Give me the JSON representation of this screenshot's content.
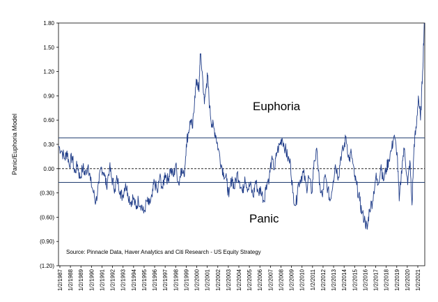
{
  "chart_data": {
    "type": "line",
    "title": "",
    "ylabel": "Panic/Euphoria  Model",
    "xlabel": "",
    "ylim": [
      -1.2,
      1.8
    ],
    "yticks": [
      {
        "value": 1.8,
        "label": "1.80"
      },
      {
        "value": 1.5,
        "label": "1.50"
      },
      {
        "value": 1.2,
        "label": "1.20"
      },
      {
        "value": 0.9,
        "label": "0.90"
      },
      {
        "value": 0.6,
        "label": "0.60"
      },
      {
        "value": 0.3,
        "label": "0.30"
      },
      {
        "value": 0.0,
        "label": "0.00"
      },
      {
        "value": -0.3,
        "label": "(0.30)"
      },
      {
        "value": -0.6,
        "label": "(0.60)"
      },
      {
        "value": -0.9,
        "label": "(0.90)"
      },
      {
        "value": -1.2,
        "label": "(1.20)"
      }
    ],
    "xlim": [
      1987,
      2021.4
    ],
    "xticks": [
      "1/2/1987",
      "1/2/1988",
      "1/2/1989",
      "1/2/1990",
      "1/2/1991",
      "1/2/1992",
      "1/2/1993",
      "1/2/1994",
      "1/2/1995",
      "1/2/1996",
      "1/2/1997",
      "1/2/1998",
      "1/2/1999",
      "1/2/2000",
      "1/2/2001",
      "1/2/2002",
      "1/2/2003",
      "1/2/2004",
      "1/2/2005",
      "1/2/2006",
      "1/2/2007",
      "1/2/2008",
      "1/2/2009",
      "1/2/2010",
      "1/2/2011",
      "1/2/2012",
      "1/2/2013",
      "1/2/2014",
      "1/2/2015",
      "1/2/2016",
      "1/2/2017",
      "1/2/2018",
      "1/2/2019",
      "1/2/2020",
      "1/2/2021"
    ],
    "reference_lines": [
      {
        "name": "Euphoria",
        "value": 0.38
      },
      {
        "name": "Panic",
        "value": -0.17
      }
    ],
    "annotations": {
      "euphoria": "Euphoria",
      "panic": "Panic"
    },
    "source": "Source:  Pinnacle Data, Haver Analytics and Citi Research - US Equity Strategy",
    "series": [
      {
        "color": "#1f3c88",
        "x": [
          1987.0,
          1987.3,
          1987.6,
          1987.8,
          1988.0,
          1988.3,
          1988.5,
          1988.8,
          1989.0,
          1989.3,
          1989.5,
          1989.8,
          1990.0,
          1990.3,
          1990.5,
          1990.8,
          1991.0,
          1991.3,
          1991.5,
          1991.8,
          1992.0,
          1992.3,
          1992.5,
          1992.8,
          1993.0,
          1993.3,
          1993.5,
          1993.8,
          1994.0,
          1994.3,
          1994.5,
          1994.8,
          1995.0,
          1995.3,
          1995.5,
          1995.8,
          1996.0,
          1996.3,
          1996.5,
          1996.8,
          1997.0,
          1997.3,
          1997.5,
          1997.8,
          1998.0,
          1998.3,
          1998.5,
          1998.8,
          1999.0,
          1999.2,
          1999.4,
          1999.6,
          1999.8,
          2000.0,
          2000.2,
          2000.3,
          2000.5,
          2000.7,
          2000.9,
          2001.0,
          2001.2,
          2001.4,
          2001.6,
          2001.8,
          2002.0,
          2002.3,
          2002.5,
          2002.8,
          2003.0,
          2003.3,
          2003.5,
          2003.8,
          2004.0,
          2004.3,
          2004.5,
          2004.8,
          2005.0,
          2005.3,
          2005.5,
          2005.8,
          2006.0,
          2006.3,
          2006.5,
          2006.8,
          2007.0,
          2007.3,
          2007.5,
          2007.8,
          2008.0,
          2008.3,
          2008.5,
          2008.8,
          2009.0,
          2009.3,
          2009.5,
          2009.8,
          2010.0,
          2010.3,
          2010.5,
          2010.8,
          2011.0,
          2011.3,
          2011.5,
          2011.8,
          2012.0,
          2012.3,
          2012.5,
          2012.8,
          2013.0,
          2013.3,
          2013.5,
          2013.8,
          2014.0,
          2014.3,
          2014.5,
          2014.8,
          2015.0,
          2015.3,
          2015.5,
          2015.8,
          2016.0,
          2016.2,
          2016.5,
          2016.8,
          2017.0,
          2017.3,
          2017.5,
          2017.8,
          2018.0,
          2018.3,
          2018.5,
          2018.8,
          2019.0,
          2019.3,
          2019.5,
          2019.8,
          2020.0,
          2020.2,
          2020.4,
          2020.6,
          2020.8,
          2021.0,
          2021.2,
          2021.35
        ],
        "values": [
          0.28,
          0.22,
          0.12,
          0.22,
          0.05,
          0.15,
          -0.05,
          0.05,
          -0.12,
          0.02,
          -0.08,
          0.05,
          -0.15,
          -0.3,
          -0.42,
          -0.18,
          0.02,
          -0.05,
          -0.22,
          0.02,
          -0.12,
          -0.25,
          -0.12,
          -0.28,
          -0.35,
          -0.18,
          -0.3,
          -0.42,
          -0.35,
          -0.5,
          -0.38,
          -0.45,
          -0.55,
          -0.4,
          -0.45,
          -0.35,
          -0.15,
          -0.3,
          -0.1,
          -0.25,
          -0.05,
          -0.15,
          0.0,
          -0.1,
          0.05,
          -0.2,
          0.0,
          -0.1,
          0.3,
          0.45,
          0.6,
          0.5,
          0.9,
          1.1,
          0.95,
          1.42,
          1.2,
          0.8,
          1.05,
          1.15,
          0.75,
          0.55,
          0.5,
          0.4,
          0.25,
          0.05,
          -0.05,
          -0.15,
          -0.35,
          -0.1,
          -0.25,
          -0.05,
          -0.15,
          -0.3,
          -0.1,
          -0.25,
          -0.2,
          -0.35,
          -0.15,
          -0.3,
          -0.25,
          -0.4,
          -0.2,
          -0.1,
          0.1,
          0.0,
          0.2,
          0.3,
          0.38,
          0.25,
          0.15,
          0.05,
          -0.3,
          -0.45,
          -0.2,
          -0.1,
          -0.05,
          -0.25,
          -0.1,
          -0.3,
          0.1,
          0.2,
          -0.2,
          -0.35,
          -0.1,
          -0.25,
          -0.4,
          -0.15,
          0.05,
          -0.1,
          0.15,
          0.25,
          0.4,
          0.1,
          0.2,
          -0.1,
          -0.2,
          -0.4,
          -0.55,
          -0.65,
          -0.75,
          -0.5,
          -0.4,
          -0.1,
          -0.2,
          0.05,
          -0.15,
          0.0,
          0.1,
          0.25,
          0.4,
          0.2,
          -0.4,
          0.1,
          0.25,
          -0.2,
          0.1,
          -0.45,
          0.3,
          0.5,
          0.9,
          0.6,
          1.2,
          1.8
        ]
      }
    ]
  }
}
